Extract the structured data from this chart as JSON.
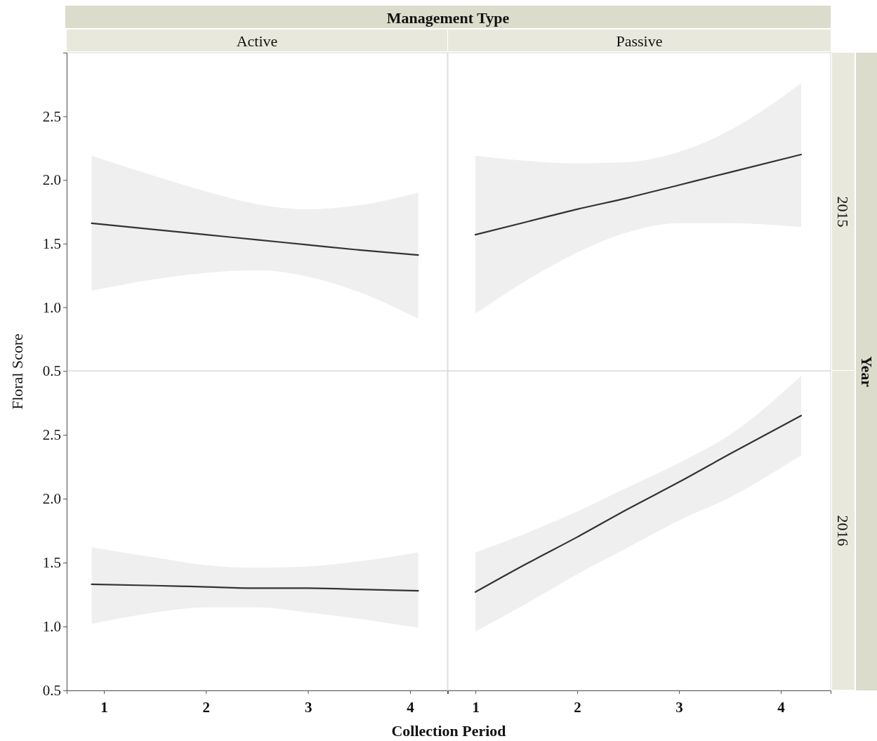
{
  "chart_data": [
    {
      "type": "line",
      "title": "Active",
      "ylabel": "Floral Score",
      "annotations": [
        "Management Type"
      ],
      "x": [
        0.88,
        1.5,
        2,
        2.5,
        3,
        3.5,
        4.08
      ],
      "xlim": [
        0.635,
        4.365
      ],
      "ylim": [
        0.5,
        3.0
      ],
      "yticks": [
        {
          "value": 0.5,
          "label": "0.5"
        },
        {
          "value": 1,
          "label": "1.0"
        },
        {
          "value": 1.5,
          "label": "1.5"
        },
        {
          "value": 2,
          "label": "2.0"
        },
        {
          "value": 2.5,
          "label": "2.5"
        }
      ],
      "tick_labels": "y",
      "grid": false,
      "series": [
        {
          "color": "#333333",
          "values": [
            1.66,
            1.61,
            1.57,
            1.53,
            1.49,
            1.45,
            1.41
          ],
          "lower": [
            1.13,
            1.22,
            1.27,
            1.29,
            1.24,
            1.12,
            0.91
          ],
          "upper": [
            2.19,
            2.03,
            1.91,
            1.81,
            1.77,
            1.8,
            1.9
          ]
        }
      ]
    },
    {
      "type": "line",
      "title": "Passive",
      "y2label": "2015",
      "annotations": [
        "Year"
      ],
      "x": [
        1,
        1.5,
        2,
        2.5,
        3,
        3.5,
        4.2
      ],
      "xlim": [
        0.73,
        4.49
      ],
      "ylim": [
        0.5,
        3.0
      ],
      "tick_labels": false,
      "grid": false,
      "series": [
        {
          "color": "#333333",
          "values": [
            1.57,
            1.67,
            1.77,
            1.86,
            1.96,
            2.06,
            2.2
          ],
          "lower": [
            0.95,
            1.21,
            1.43,
            1.59,
            1.66,
            1.66,
            1.63
          ],
          "upper": [
            2.19,
            2.15,
            2.13,
            2.14,
            2.22,
            2.39,
            2.76
          ]
        }
      ]
    },
    {
      "type": "line",
      "xlabel": "Collection Period",
      "x": [
        0.88,
        1.5,
        2,
        2.5,
        3,
        3.5,
        4.08
      ],
      "xlim": [
        0.635,
        4.365
      ],
      "xticks": [
        1,
        2,
        3,
        4
      ],
      "ylim": [
        0.5,
        3.0
      ],
      "yticks": [
        {
          "value": 0.5,
          "label": "0.5"
        },
        {
          "value": 1,
          "label": "1.0"
        },
        {
          "value": 1.5,
          "label": "1.5"
        },
        {
          "value": 2,
          "label": "2.0"
        },
        {
          "value": 2.5,
          "label": "2.5"
        }
      ],
      "grid": false,
      "series": [
        {
          "color": "#333333",
          "values": [
            1.33,
            1.32,
            1.31,
            1.3,
            1.3,
            1.29,
            1.28
          ],
          "lower": [
            1.02,
            1.11,
            1.15,
            1.15,
            1.11,
            1.06,
            0.99
          ],
          "upper": [
            1.62,
            1.54,
            1.48,
            1.46,
            1.47,
            1.51,
            1.58
          ]
        }
      ]
    },
    {
      "type": "line",
      "y2label": "2016",
      "x": [
        1,
        1.5,
        2,
        2.5,
        3,
        3.5,
        4.2
      ],
      "xlim": [
        0.73,
        4.49
      ],
      "xticks": [
        1,
        2,
        3,
        4
      ],
      "ylim": [
        0.5,
        3.0
      ],
      "tick_labels": "x",
      "grid": false,
      "series": [
        {
          "color": "#333333",
          "values": [
            1.27,
            1.49,
            1.7,
            1.92,
            2.13,
            2.35,
            2.65
          ],
          "lower": [
            0.96,
            1.18,
            1.41,
            1.62,
            1.83,
            2.01,
            2.34
          ],
          "upper": [
            1.58,
            1.73,
            1.9,
            2.09,
            2.28,
            2.5,
            2.96
          ]
        }
      ]
    }
  ]
}
